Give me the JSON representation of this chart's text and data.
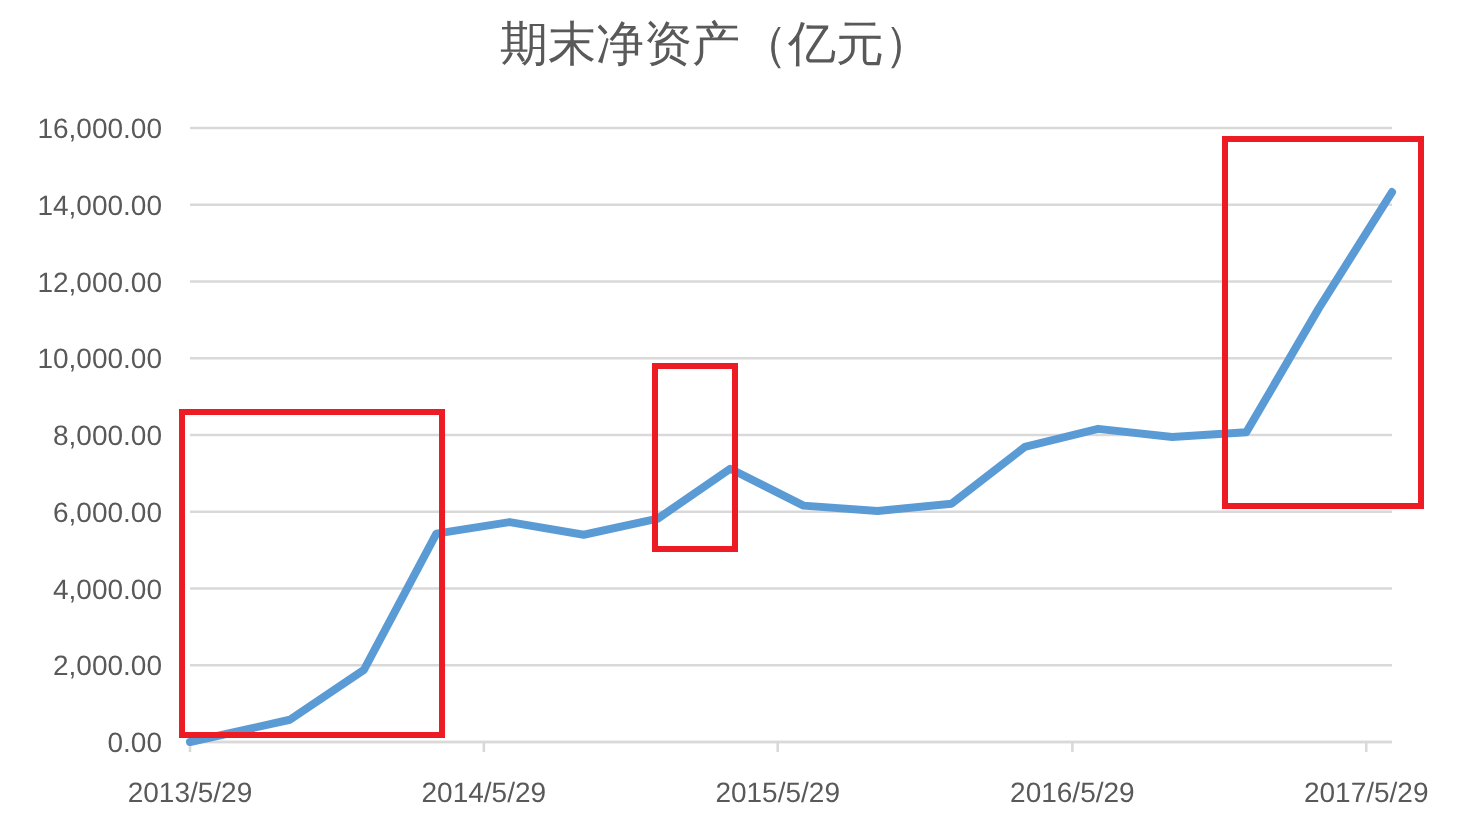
{
  "chart_data": {
    "type": "line",
    "title": "期末净资产（亿元）",
    "x": [
      "2013-05-29",
      "2013-09-30",
      "2013-12-31",
      "2014-03-31",
      "2014-06-30",
      "2014-09-30",
      "2014-12-31",
      "2015-03-31",
      "2015-06-30",
      "2015-09-30",
      "2015-12-31",
      "2016-03-31",
      "2016-06-30",
      "2016-09-30",
      "2016-12-31",
      "2017-03-31",
      "2017-06-30"
    ],
    "series": [
      {
        "color": "#5b9bd5",
        "values": [
          0,
          580,
          1880,
          5430,
          5730,
          5400,
          5820,
          7120,
          6160,
          6020,
          6210,
          7690,
          8160,
          7950,
          8070,
          11300,
          14330
        ]
      }
    ],
    "xlim": [
      "2013-05-29",
      "2017-06-30"
    ],
    "xticks": [
      {
        "value": "2013-05-29",
        "label": "2013/5/29"
      },
      {
        "value": "2014-05-29",
        "label": "2014/5/29"
      },
      {
        "value": "2015-05-29",
        "label": "2015/5/29"
      },
      {
        "value": "2016-05-29",
        "label": "2016/5/29"
      },
      {
        "value": "2017-05-29",
        "label": "2017/5/29"
      }
    ],
    "ylim": [
      0,
      16000
    ],
    "yticks": [
      {
        "value": 0,
        "label": "0.00"
      },
      {
        "value": 2000,
        "label": "2,000.00"
      },
      {
        "value": 4000,
        "label": "4,000.00"
      },
      {
        "value": 6000,
        "label": "6,000.00"
      },
      {
        "value": 8000,
        "label": "8,000.00"
      },
      {
        "value": 10000,
        "label": "10,000.00"
      },
      {
        "value": 12000,
        "label": "12,000.00"
      },
      {
        "value": 14000,
        "label": "14,000.00"
      },
      {
        "value": 16000,
        "label": "16,000.00"
      }
    ],
    "grid": "y",
    "line_style": "solid"
  }
}
